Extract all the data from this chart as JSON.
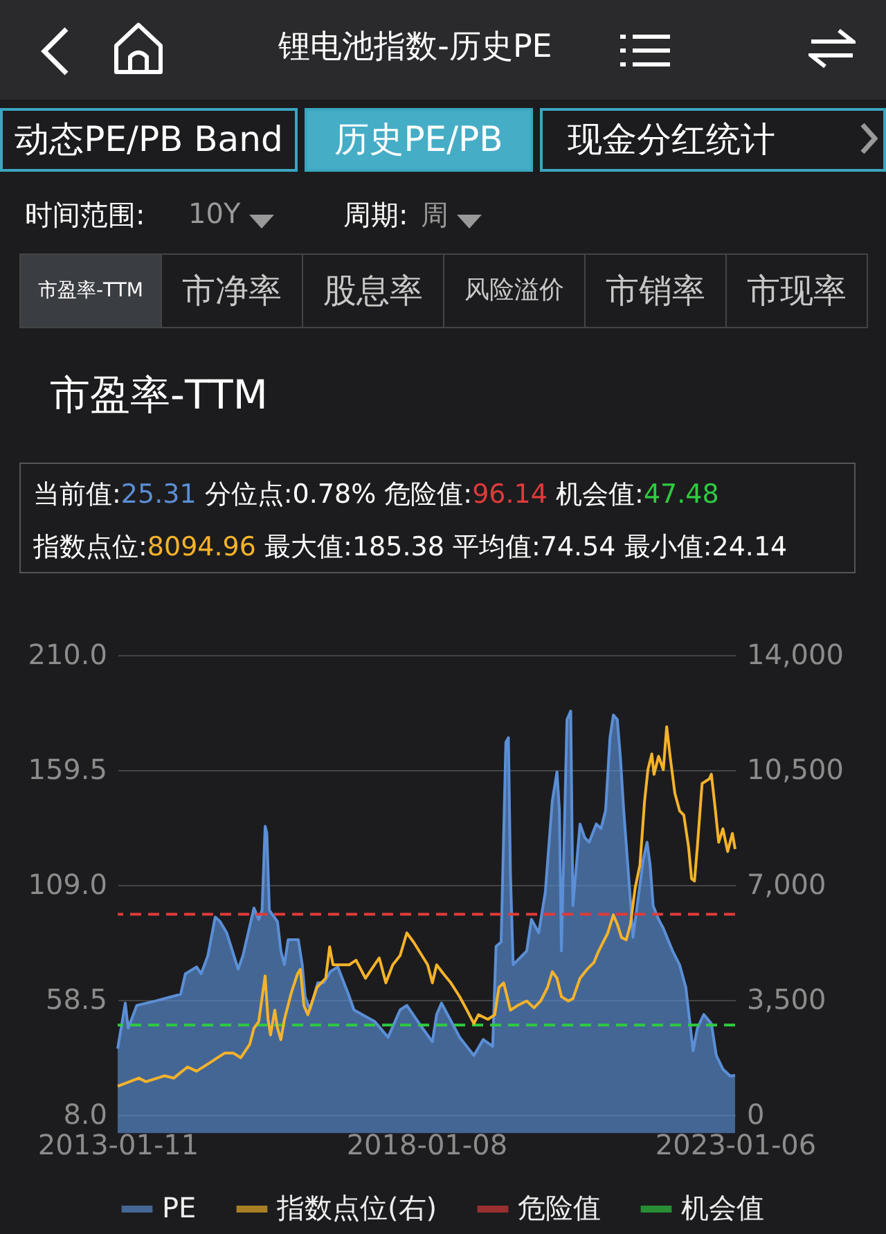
{
  "chart_data": {
    "type": "area",
    "title": "锂电池指数-历史PE",
    "subtitle": "市盈率-TTM",
    "annotations": [
      "动态PE/PB Band",
      "历史PE/PB",
      "现金分红统计",
      "时间范围:",
      "10Y",
      "周期:",
      "周",
      "市盈率-TTM",
      "市净率",
      "股息率",
      "风险溢价",
      "市销率",
      "市现率",
      "当前值:25.31",
      "分位点:0.78%",
      "危险值:96.14",
      "机会值:47.48",
      "指数点位:8094.96",
      "最大值:185.38",
      "平均值:74.54",
      "最小值:24.14"
    ],
    "xlim": [
      "2013-01-11",
      "2023-01-06"
    ],
    "xticks": [
      "2013-01-11",
      "2018-01-08",
      "2023-01-06"
    ],
    "ylim": [
      8,
      210
    ],
    "yticks": [
      {
        "value": 8,
        "label": "8.0"
      },
      {
        "value": 58.5,
        "label": "58.5"
      },
      {
        "value": 109,
        "label": "109.0"
      },
      {
        "value": 159.5,
        "label": "159.5"
      },
      {
        "value": 210,
        "label": "210.0"
      }
    ],
    "y2lim": [
      0,
      14000
    ],
    "y2ticks": [
      {
        "value": 0,
        "label": "0"
      },
      {
        "value": 3500,
        "label": "3,500"
      },
      {
        "value": 7000,
        "label": "7,000"
      },
      {
        "value": 10500,
        "label": "10,500"
      },
      {
        "value": 14000,
        "label": "14,000"
      }
    ],
    "grid": "y",
    "legend": "bottom",
    "ref_lines": [
      {
        "axis": "y",
        "value": 96.14,
        "label": "危险值",
        "color": "#e03a3a",
        "line_style": "dashed"
      },
      {
        "axis": "y",
        "value": 47.48,
        "label": "机会值",
        "color": "#2ecc40",
        "line_style": "dashed"
      }
    ],
    "series": [
      {
        "name": "PE",
        "color": "#5b8fd6",
        "x": [
          "2013-01-11",
          "2013-02-25",
          "2013-03-14",
          "2013-05-04",
          "2013-08-20",
          "2014-01-18",
          "2014-02-15",
          "2014-04-22",
          "2014-05-19",
          "2014-06-28",
          "2014-08-10",
          "2014-09-07",
          "2014-10-17",
          "2014-12-24",
          "2015-01-21",
          "2015-03-27",
          "2015-04-24",
          "2015-05-14",
          "2015-06-01",
          "2015-06-11",
          "2015-06-26",
          "2015-08-13",
          "2015-09-02",
          "2015-09-23",
          "2015-10-15",
          "2015-12-14",
          "2016-01-06",
          "2016-01-23",
          "2016-02-21",
          "2016-04-07",
          "2016-05-12",
          "2016-06-21",
          "2016-08-03",
          "2016-10-05",
          "2016-11-07",
          "2017-03-08",
          "2017-05-27",
          "2017-08-06",
          "2017-09-15",
          "2017-12-07",
          "2018-02-13",
          "2018-03-10",
          "2018-04-08",
          "2018-07-24",
          "2018-10-16",
          "2018-12-10",
          "2019-02-04",
          "2019-02-24",
          "2019-03-26",
          "2019-04-23",
          "2019-05-08",
          "2019-05-20",
          "2019-06-05",
          "2019-08-24",
          "2019-09-21",
          "2019-11-03",
          "2019-12-12",
          "2020-01-22",
          "2020-02-19",
          "2020-03-04",
          "2020-03-16",
          "2020-04-18",
          "2020-05-10",
          "2020-05-23",
          "2020-07-04",
          "2020-08-01",
          "2020-08-27",
          "2020-10-08",
          "2020-11-05",
          "2020-12-02",
          "2020-12-28",
          "2021-01-17",
          "2021-02-09",
          "2021-02-27",
          "2021-03-19",
          "2021-04-08",
          "2021-04-28",
          "2021-05-13",
          "2021-06-10",
          "2021-07-12",
          "2021-08-04",
          "2021-08-22",
          "2021-09-09",
          "2021-10-11",
          "2021-11-08",
          "2022-01-02",
          "2022-02-12",
          "2022-03-21",
          "2022-05-03",
          "2022-05-28",
          "2022-07-05",
          "2022-08-19",
          "2022-09-17",
          "2022-10-26",
          "2022-12-08",
          "2023-01-06"
        ],
        "values": [
          37.1,
          57.1,
          46.1,
          56.1,
          58.0,
          61.0,
          70.0,
          73.0,
          70.0,
          78.0,
          94.9,
          93.0,
          88.0,
          72.0,
          78.0,
          98.9,
          93.9,
          97.9,
          134.8,
          131.8,
          97.9,
          92.9,
          80.0,
          74.0,
          85.0,
          85.0,
          74.0,
          60.0,
          54.1,
          66.0,
          66.0,
          71.0,
          73.0,
          61.0,
          54.1,
          49.1,
          42.1,
          54.1,
          56.1,
          47.1,
          40.1,
          52.1,
          57.1,
          42.1,
          34.1,
          41.1,
          38.1,
          82.0,
          84.0,
          171.7,
          173.7,
          113.9,
          74.0,
          80.0,
          93.9,
          88.0,
          105.9,
          145.8,
          158.7,
          141.8,
          80.0,
          181.7,
          185.38,
          99.9,
          135.8,
          129.8,
          127.8,
          135.8,
          133.8,
          141.8,
          173.7,
          183.7,
          181.7,
          165.7,
          141.8,
          121.9,
          101.9,
          86.0,
          101.9,
          119.9,
          127.8,
          117.9,
          99.9,
          93.9,
          90.0,
          80.0,
          74.0,
          64.0,
          36.1,
          46.1,
          52.1,
          48.1,
          34.1,
          28.1,
          25.1,
          25.31
        ]
      },
      {
        "name": "指数点位(右)",
        "type": "line",
        "axis": "y2",
        "color": "#f5b32a",
        "x": [
          "2013-01-11",
          "2013-05-16",
          "2013-06-26",
          "2013-10-14",
          "2013-12-08",
          "2014-02-28",
          "2014-04-22",
          "2014-07-13",
          "2014-10-04",
          "2014-11-26",
          "2015-01-08",
          "2015-03-02",
          "2015-03-27",
          "2015-04-24",
          "2015-06-01",
          "2015-06-18",
          "2015-07-03",
          "2015-07-28",
          "2015-08-13",
          "2015-09-02",
          "2015-09-23",
          "2015-11-04",
          "2015-12-09",
          "2015-12-26",
          "2016-01-16",
          "2016-02-08",
          "2016-04-02",
          "2016-05-24",
          "2016-06-16",
          "2016-07-06",
          "2016-10-10",
          "2016-11-19",
          "2017-01-14",
          "2017-03-08",
          "2017-04-05",
          "2017-05-14",
          "2017-06-24",
          "2017-08-06",
          "2017-09-15",
          "2017-10-25",
          "2018-01-16",
          "2018-02-13",
          "2018-03-10",
          "2018-04-20",
          "2018-06-02",
          "2018-07-24",
          "2018-09-05",
          "2018-10-16",
          "2018-11-12",
          "2019-01-07",
          "2019-02-16",
          "2019-03-13",
          "2019-04-10",
          "2019-05-20",
          "2019-07-01",
          "2019-08-24",
          "2019-10-06",
          "2019-11-15",
          "2019-12-25",
          "2020-01-22",
          "2020-02-19",
          "2020-03-16",
          "2020-04-26",
          "2020-05-23",
          "2020-07-04",
          "2020-08-14",
          "2020-09-24",
          "2020-10-21",
          "2020-12-15",
          "2021-01-17",
          "2021-02-09",
          "2021-03-06",
          "2021-04-03",
          "2021-04-28",
          "2021-05-26",
          "2021-06-23",
          "2021-07-20",
          "2021-08-09",
          "2021-09-01",
          "2021-09-14",
          "2021-10-11",
          "2021-11-08",
          "2021-11-28",
          "2021-12-18",
          "2022-01-15",
          "2022-02-12",
          "2022-03-09",
          "2022-04-06",
          "2022-04-24",
          "2022-05-11",
          "2022-05-28",
          "2022-06-25",
          "2022-08-07",
          "2022-08-19",
          "2022-09-09",
          "2022-10-01",
          "2022-10-26",
          "2022-11-23",
          "2022-12-21",
          "2023-01-06"
        ],
        "values": [
          870,
          1120,
          1010,
          1190,
          1120,
          1460,
          1330,
          1600,
          1880,
          1880,
          1740,
          2150,
          2640,
          2840,
          4230,
          2910,
          2430,
          3190,
          2640,
          2290,
          2910,
          3740,
          4290,
          4430,
          3330,
          3050,
          3880,
          4160,
          5120,
          4570,
          4570,
          4710,
          4160,
          4570,
          4780,
          4020,
          4570,
          4850,
          5540,
          5260,
          4570,
          4020,
          4570,
          4290,
          4020,
          3600,
          3190,
          2780,
          3050,
          2910,
          3050,
          3880,
          4020,
          3190,
          3330,
          3470,
          3260,
          3470,
          3880,
          4360,
          4160,
          3600,
          3470,
          3540,
          4160,
          4430,
          4640,
          4980,
          5540,
          6090,
          5810,
          5400,
          5330,
          5810,
          6920,
          7610,
          9540,
          10510,
          10990,
          10370,
          10920,
          10510,
          11820,
          10920,
          9800,
          9260,
          9130,
          8160,
          7190,
          7120,
          8160,
          10090,
          10230,
          10370,
          9400,
          8300,
          8710,
          8020,
          8570,
          8094.96
        ]
      }
    ]
  }
}
